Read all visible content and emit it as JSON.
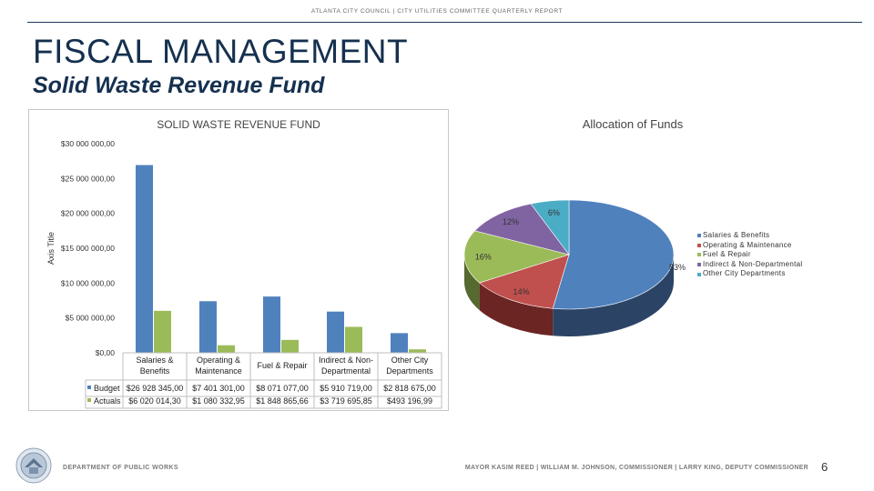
{
  "header": {
    "top_text": "ATLANTA CITY COUNCIL  |  CITY UTILITIES COMMITTEE QUARTERLY REPORT",
    "title": "FISCAL MANAGEMENT",
    "subtitle": "Solid Waste Revenue Fund"
  },
  "chart_data": [
    {
      "type": "bar",
      "title": "SOLID WASTE REVENUE FUND",
      "ylabel": "Axis Title",
      "xlabel": "",
      "ylim": [
        0,
        30000000
      ],
      "yticks": [
        0,
        5000000,
        10000000,
        15000000,
        20000000,
        25000000,
        30000000
      ],
      "ytick_labels": [
        "$0,00",
        "$5 000 000,00",
        "$10 000 000,00",
        "$15 000 000,00",
        "$20 000 000,00",
        "$25 000 000,00",
        "$30 000 000,00"
      ],
      "categories": [
        [
          "Salaries &",
          "Benefits"
        ],
        [
          "Operating &",
          "Maintenance"
        ],
        [
          "Fuel & Repair"
        ],
        [
          "Indirect & Non-",
          "Departmental"
        ],
        [
          "Other City",
          "Departments"
        ]
      ],
      "series": [
        {
          "name": "Budget",
          "color": "#4f81bd",
          "values": [
            26928345.0,
            7401301.0,
            8071077.0,
            5910719.0,
            2818675.0
          ],
          "labels": [
            "$26 928 345,00",
            "$7 401 301,00",
            "$8 071 077,00",
            "$5 910 719,00",
            "$2 818 675,00"
          ]
        },
        {
          "name": "Actuals",
          "color": "#9bbb59",
          "values": [
            6020014.3,
            1080332.95,
            1848865.66,
            3719695.85,
            493196.99
          ],
          "labels": [
            "$6 020 014,30",
            "$1 080 332,95",
            "$1 848 865,66",
            "$3 719 695,85",
            "$493 196,99"
          ]
        }
      ],
      "grid": false,
      "legend": "data-table"
    },
    {
      "type": "pie",
      "title": "Allocation of Funds",
      "style": "3d",
      "slices": [
        {
          "label": "Salaries & Benefits",
          "value": 53,
          "text": "53%",
          "color": "#4f81bd",
          "dark": "#2b4466"
        },
        {
          "label": "Operating & Maintenance",
          "value": 14,
          "text": "14%",
          "color": "#c0504d",
          "dark": "#6b2523"
        },
        {
          "label": "Fuel & Repair",
          "value": 16,
          "text": "16%",
          "color": "#9bbb59",
          "dark": "#56692f"
        },
        {
          "label": "Indirect & Non-Departmental",
          "value": 12,
          "text": "12%",
          "color": "#8064a2",
          "dark": "#463659"
        },
        {
          "label": "Other City Departments",
          "value": 6,
          "text": "6%",
          "color": "#4bacc6",
          "dark": "#285f6e"
        }
      ],
      "legend": "right"
    }
  ],
  "footer": {
    "left": "DEPARTMENT OF PUBLIC WORKS",
    "right": "MAYOR KASIM REED  |  WILLIAM M. JOHNSON, COMMISSIONER  |  LARRY KING, DEPUTY COMMISSIONER",
    "page": "6",
    "seal_icon": "city-seal-icon"
  }
}
